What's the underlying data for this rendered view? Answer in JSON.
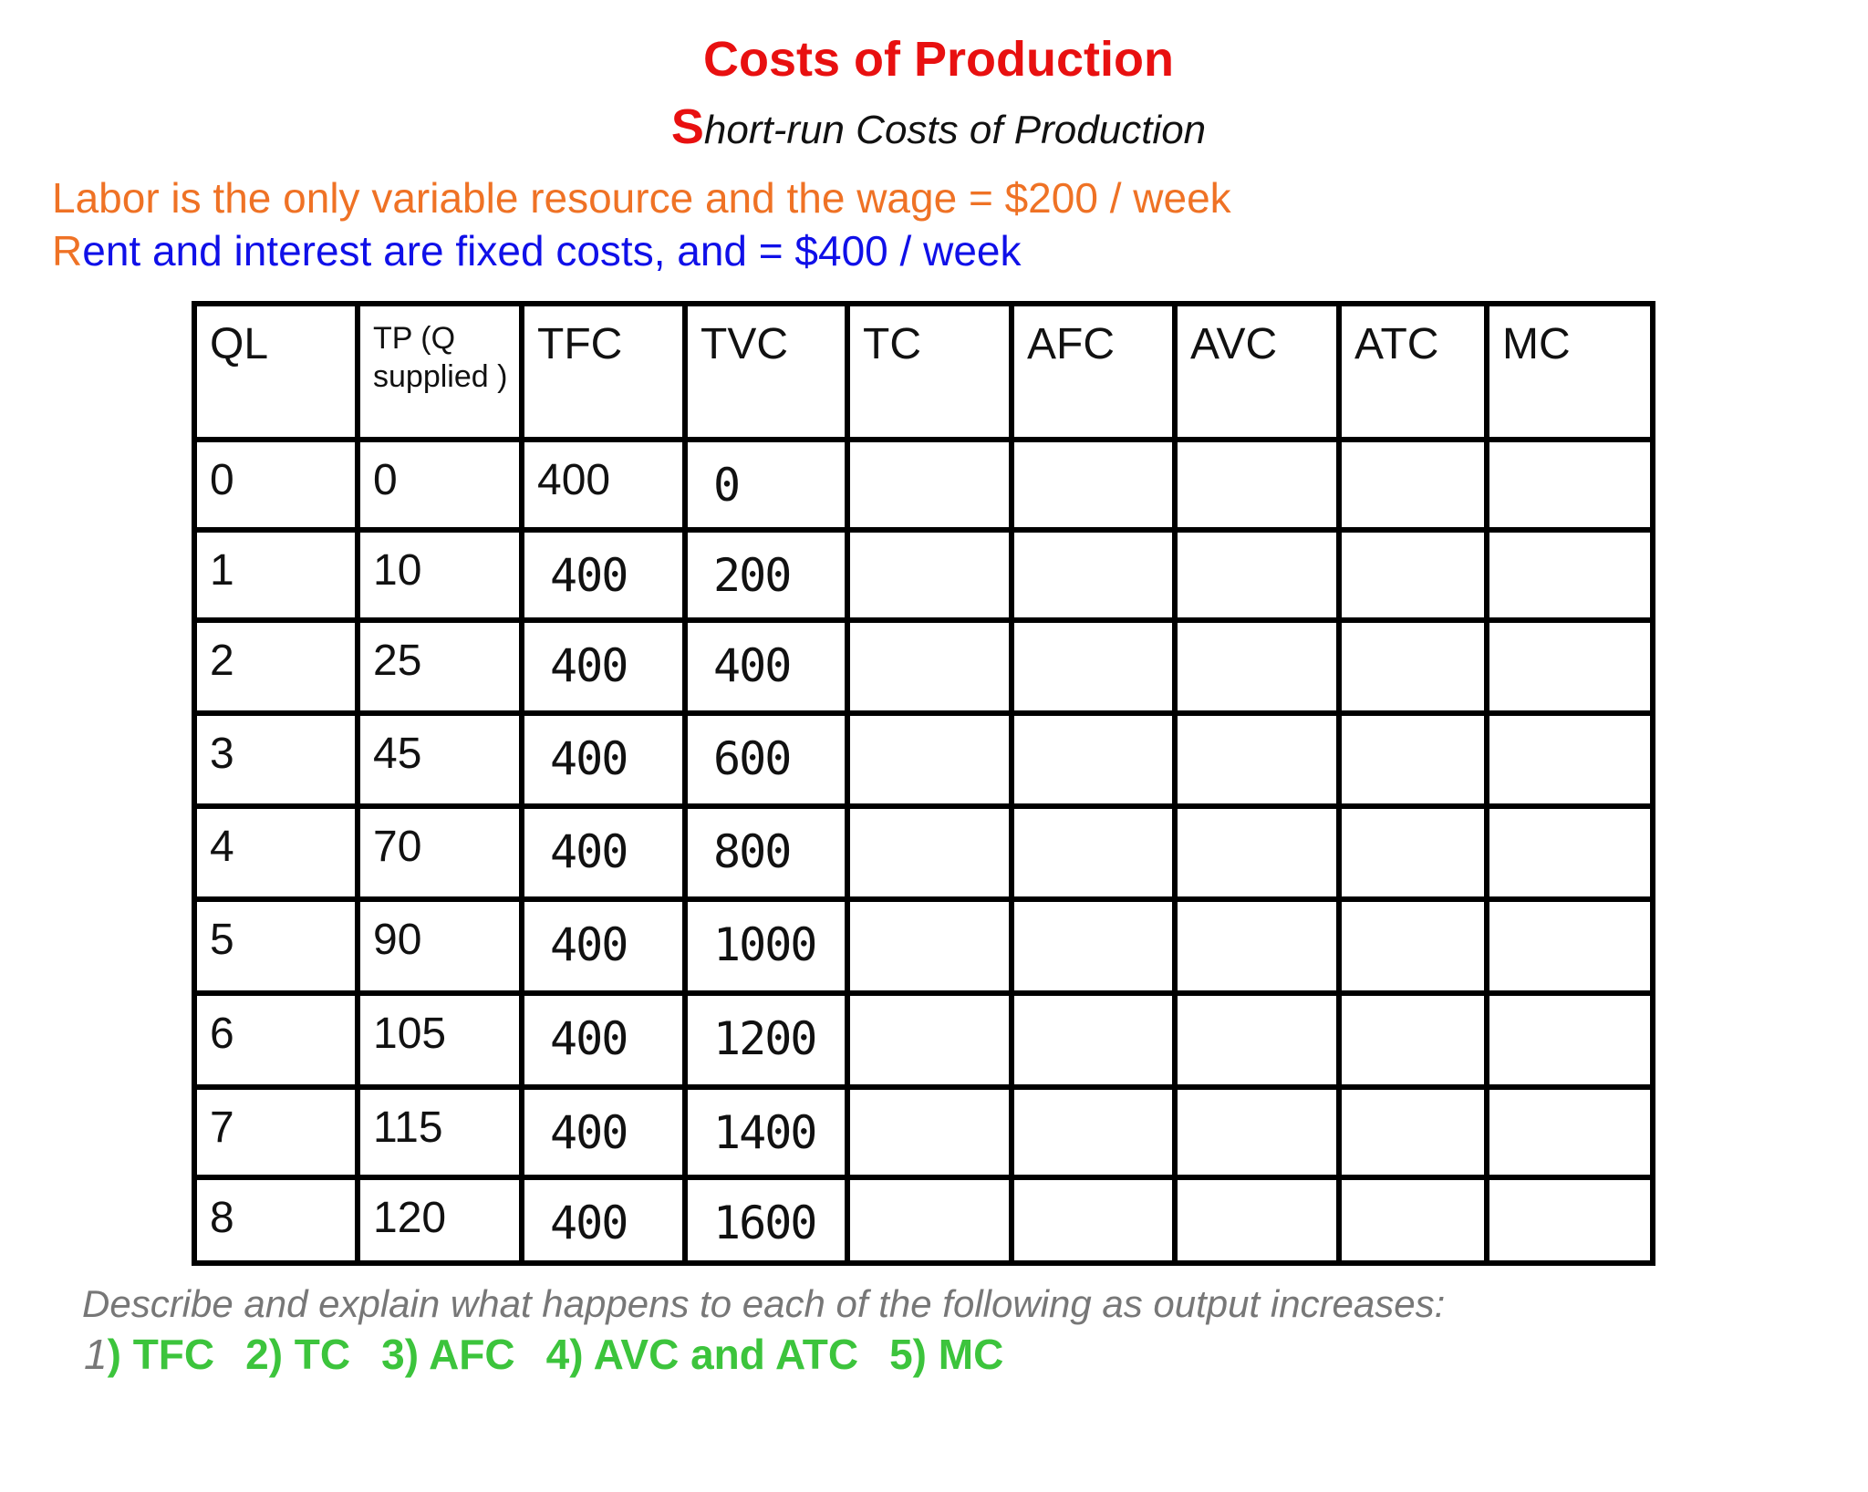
{
  "header": {
    "title": "Costs of Production",
    "subtitle": "Short-run Costs of Production"
  },
  "notes": [
    "Labor is the only variable resource and the wage = $200 / week",
    "Rent and interest are fixed costs, and = $400 / week"
  ],
  "table": {
    "headers": [
      "QL",
      "TP (Q supplied )",
      "TFC",
      "TVC",
      "TC",
      "AFC",
      "AVC",
      "ATC",
      "MC"
    ],
    "rows": [
      [
        0,
        0,
        400,
        0
      ],
      [
        1,
        10,
        400,
        200
      ],
      [
        2,
        25,
        400,
        400
      ],
      [
        3,
        45,
        400,
        600
      ],
      [
        4,
        70,
        400,
        800
      ],
      [
        5,
        90,
        400,
        1000
      ],
      [
        6,
        105,
        400,
        1200
      ],
      [
        7,
        115,
        400,
        1400
      ],
      [
        8,
        120,
        400,
        1600
      ]
    ]
  },
  "footer": {
    "prompt": "Describe and explain what happens to each of the following as output increases:",
    "items": [
      "1) TFC",
      "2) TC",
      "3) AFC",
      "4) AVC and ATC",
      "5) MC"
    ]
  }
}
